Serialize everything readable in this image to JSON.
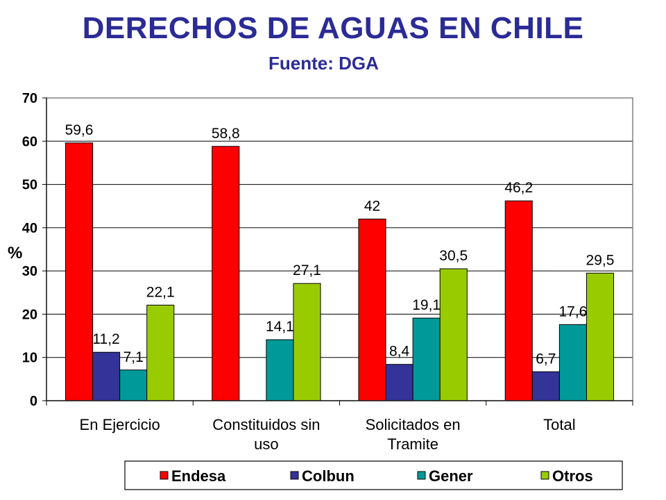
{
  "title": "DERECHOS DE AGUAS EN CHILE",
  "subtitle": "Fuente: DGA",
  "chart_data": {
    "type": "bar",
    "ylabel": "%",
    "xlabel": "",
    "ylim": [
      0,
      70
    ],
    "yticks": [
      0,
      10,
      20,
      30,
      40,
      50,
      60,
      70
    ],
    "grid": true,
    "legend_position": "bottom",
    "categories": [
      [
        "En Ejercicio"
      ],
      [
        "Constituidos sin",
        "uso"
      ],
      [
        "Solicitados en",
        "Tramite"
      ],
      [
        "Total"
      ]
    ],
    "series": [
      {
        "name": "Endesa",
        "color": "#ff0000",
        "values": [
          59.6,
          58.8,
          42,
          46.2
        ],
        "labels": [
          "59,6",
          "58,8",
          "42",
          "46,2"
        ]
      },
      {
        "name": "Colbun",
        "color": "#333399",
        "values": [
          11.2,
          null,
          8.4,
          6.7
        ],
        "labels": [
          "11,2",
          "",
          "8,4",
          "6,7"
        ]
      },
      {
        "name": "Gener",
        "color": "#009999",
        "values": [
          7.1,
          14.1,
          19.1,
          17.6
        ],
        "labels": [
          "7,1",
          "14,1",
          "19,1",
          "17,6"
        ]
      },
      {
        "name": "Otros",
        "color": "#99cc00",
        "values": [
          22.1,
          27.1,
          30.5,
          29.5
        ],
        "labels": [
          "22,1",
          "27,1",
          "30,5",
          "29,5"
        ]
      }
    ]
  }
}
